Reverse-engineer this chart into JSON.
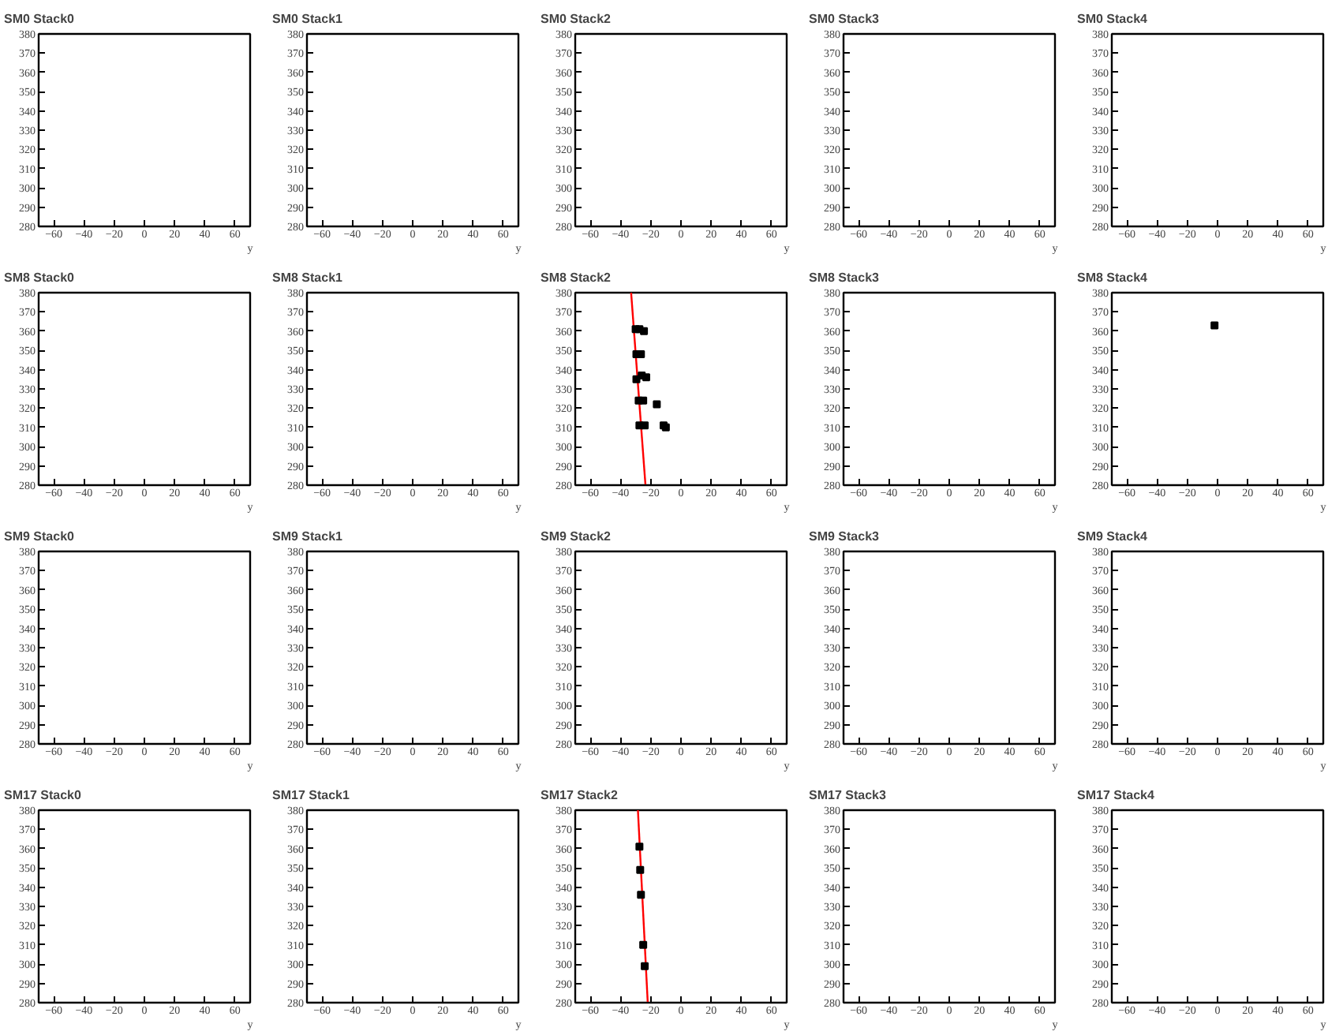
{
  "chart_data": [
    {
      "type": "scatter",
      "title": "SM0 Stack0",
      "xlabel": "y",
      "xlim": [
        -70,
        70
      ],
      "ylim": [
        280,
        380
      ],
      "xticks": [
        -60,
        -40,
        -20,
        0,
        20,
        40,
        60
      ],
      "yticks": [
        280,
        290,
        300,
        310,
        320,
        330,
        340,
        350,
        360,
        370,
        380
      ],
      "grid": false
    },
    {
      "type": "scatter",
      "title": "SM0 Stack1",
      "xlabel": "y",
      "xlim": [
        -70,
        70
      ],
      "ylim": [
        280,
        380
      ],
      "xticks": [
        -60,
        -40,
        -20,
        0,
        20,
        40,
        60
      ],
      "yticks": [
        280,
        290,
        300,
        310,
        320,
        330,
        340,
        350,
        360,
        370,
        380
      ],
      "grid": false
    },
    {
      "type": "scatter",
      "title": "SM0 Stack2",
      "xlabel": "y",
      "xlim": [
        -70,
        70
      ],
      "ylim": [
        280,
        380
      ],
      "xticks": [
        -60,
        -40,
        -20,
        0,
        20,
        40,
        60
      ],
      "yticks": [
        280,
        290,
        300,
        310,
        320,
        330,
        340,
        350,
        360,
        370,
        380
      ],
      "grid": false
    },
    {
      "type": "scatter",
      "title": "SM0 Stack3",
      "xlabel": "y",
      "xlim": [
        -70,
        70
      ],
      "ylim": [
        280,
        380
      ],
      "xticks": [
        -60,
        -40,
        -20,
        0,
        20,
        40,
        60
      ],
      "yticks": [
        280,
        290,
        300,
        310,
        320,
        330,
        340,
        350,
        360,
        370,
        380
      ],
      "grid": false
    },
    {
      "type": "scatter",
      "title": "SM0 Stack4",
      "xlabel": "y",
      "xlim": [
        -70,
        70
      ],
      "ylim": [
        280,
        380
      ],
      "xticks": [
        -60,
        -40,
        -20,
        0,
        20,
        40,
        60
      ],
      "yticks": [
        280,
        290,
        300,
        310,
        320,
        330,
        340,
        350,
        360,
        370,
        380
      ],
      "grid": false
    },
    {
      "type": "scatter",
      "title": "SM8 Stack0",
      "xlabel": "y",
      "xlim": [
        -70,
        70
      ],
      "ylim": [
        280,
        380
      ],
      "xticks": [
        -60,
        -40,
        -20,
        0,
        20,
        40,
        60
      ],
      "yticks": [
        280,
        290,
        300,
        310,
        320,
        330,
        340,
        350,
        360,
        370,
        380
      ],
      "grid": false
    },
    {
      "type": "scatter",
      "title": "SM8 Stack1",
      "xlabel": "y",
      "xlim": [
        -70,
        70
      ],
      "ylim": [
        280,
        380
      ],
      "xticks": [
        -60,
        -40,
        -20,
        0,
        20,
        40,
        60
      ],
      "yticks": [
        280,
        290,
        300,
        310,
        320,
        330,
        340,
        350,
        360,
        370,
        380
      ],
      "grid": false
    },
    {
      "type": "scatter",
      "title": "SM8 Stack2",
      "xlabel": "y",
      "xlim": [
        -70,
        70
      ],
      "ylim": [
        280,
        380
      ],
      "xticks": [
        -60,
        -40,
        -20,
        0,
        20,
        40,
        60
      ],
      "yticks": [
        280,
        290,
        300,
        310,
        320,
        330,
        340,
        350,
        360,
        370,
        380
      ],
      "grid": false,
      "series": [
        {
          "color": "#000000",
          "marker": "square",
          "x": [
            -30,
            -27.5,
            -24.5,
            -29.5,
            -26.5,
            -29.5,
            -26,
            -23,
            -28,
            -25,
            -16,
            -27.5,
            -24,
            -11.5,
            -10
          ],
          "values": [
            361,
            361,
            360,
            348,
            348,
            335,
            337,
            336,
            324,
            324,
            322,
            311,
            311,
            311,
            310
          ]
        },
        {
          "type": "line",
          "color": "#ff0000",
          "x": [
            -33,
            -23.5
          ],
          "values": [
            380,
            280
          ]
        }
      ]
    },
    {
      "type": "scatter",
      "title": "SM8 Stack3",
      "xlabel": "y",
      "xlim": [
        -70,
        70
      ],
      "ylim": [
        280,
        380
      ],
      "xticks": [
        -60,
        -40,
        -20,
        0,
        20,
        40,
        60
      ],
      "yticks": [
        280,
        290,
        300,
        310,
        320,
        330,
        340,
        350,
        360,
        370,
        380
      ],
      "grid": false
    },
    {
      "type": "scatter",
      "title": "SM8 Stack4",
      "xlabel": "y",
      "xlim": [
        -70,
        70
      ],
      "ylim": [
        280,
        380
      ],
      "xticks": [
        -60,
        -40,
        -20,
        0,
        20,
        40,
        60
      ],
      "yticks": [
        280,
        290,
        300,
        310,
        320,
        330,
        340,
        350,
        360,
        370,
        380
      ],
      "grid": false,
      "series": [
        {
          "color": "#000000",
          "marker": "square",
          "x": [
            -2
          ],
          "values": [
            363
          ]
        }
      ]
    },
    {
      "type": "scatter",
      "title": "SM9 Stack0",
      "xlabel": "y",
      "xlim": [
        -70,
        70
      ],
      "ylim": [
        280,
        380
      ],
      "xticks": [
        -60,
        -40,
        -20,
        0,
        20,
        40,
        60
      ],
      "yticks": [
        280,
        290,
        300,
        310,
        320,
        330,
        340,
        350,
        360,
        370,
        380
      ],
      "grid": false
    },
    {
      "type": "scatter",
      "title": "SM9 Stack1",
      "xlabel": "y",
      "xlim": [
        -70,
        70
      ],
      "ylim": [
        280,
        380
      ],
      "xticks": [
        -60,
        -40,
        -20,
        0,
        20,
        40,
        60
      ],
      "yticks": [
        280,
        290,
        300,
        310,
        320,
        330,
        340,
        350,
        360,
        370,
        380
      ],
      "grid": false
    },
    {
      "type": "scatter",
      "title": "SM9 Stack2",
      "xlabel": "y",
      "xlim": [
        -70,
        70
      ],
      "ylim": [
        280,
        380
      ],
      "xticks": [
        -60,
        -40,
        -20,
        0,
        20,
        40,
        60
      ],
      "yticks": [
        280,
        290,
        300,
        310,
        320,
        330,
        340,
        350,
        360,
        370,
        380
      ],
      "grid": false
    },
    {
      "type": "scatter",
      "title": "SM9 Stack3",
      "xlabel": "y",
      "xlim": [
        -70,
        70
      ],
      "ylim": [
        280,
        380
      ],
      "xticks": [
        -60,
        -40,
        -20,
        0,
        20,
        40,
        60
      ],
      "yticks": [
        280,
        290,
        300,
        310,
        320,
        330,
        340,
        350,
        360,
        370,
        380
      ],
      "grid": false
    },
    {
      "type": "scatter",
      "title": "SM9 Stack4",
      "xlabel": "y",
      "xlim": [
        -70,
        70
      ],
      "ylim": [
        280,
        380
      ],
      "xticks": [
        -60,
        -40,
        -20,
        0,
        20,
        40,
        60
      ],
      "yticks": [
        280,
        290,
        300,
        310,
        320,
        330,
        340,
        350,
        360,
        370,
        380
      ],
      "grid": false
    },
    {
      "type": "scatter",
      "title": "SM17 Stack0",
      "xlabel": "y",
      "xlim": [
        -70,
        70
      ],
      "ylim": [
        280,
        380
      ],
      "xticks": [
        -60,
        -40,
        -20,
        0,
        20,
        40,
        60
      ],
      "yticks": [
        280,
        290,
        300,
        310,
        320,
        330,
        340,
        350,
        360,
        370,
        380
      ],
      "grid": false
    },
    {
      "type": "scatter",
      "title": "SM17 Stack1",
      "xlabel": "y",
      "xlim": [
        -70,
        70
      ],
      "ylim": [
        280,
        380
      ],
      "xticks": [
        -60,
        -40,
        -20,
        0,
        20,
        40,
        60
      ],
      "yticks": [
        280,
        290,
        300,
        310,
        320,
        330,
        340,
        350,
        360,
        370,
        380
      ],
      "grid": false
    },
    {
      "type": "scatter",
      "title": "SM17 Stack2",
      "xlabel": "y",
      "xlim": [
        -70,
        70
      ],
      "ylim": [
        280,
        380
      ],
      "xticks": [
        -60,
        -40,
        -20,
        0,
        20,
        40,
        60
      ],
      "yticks": [
        280,
        290,
        300,
        310,
        320,
        330,
        340,
        350,
        360,
        370,
        380
      ],
      "grid": false,
      "series": [
        {
          "color": "#000000",
          "marker": "square",
          "x": [
            -27.5,
            -27,
            -26.5,
            -25,
            -24
          ],
          "values": [
            361,
            349,
            336,
            310,
            299
          ]
        },
        {
          "type": "line",
          "color": "#ff0000",
          "x": [
            -28.5,
            -22
          ],
          "values": [
            380,
            280
          ]
        }
      ]
    },
    {
      "type": "scatter",
      "title": "SM17 Stack3",
      "xlabel": "y",
      "xlim": [
        -70,
        70
      ],
      "ylim": [
        280,
        380
      ],
      "xticks": [
        -60,
        -40,
        -20,
        0,
        20,
        40,
        60
      ],
      "yticks": [
        280,
        290,
        300,
        310,
        320,
        330,
        340,
        350,
        360,
        370,
        380
      ],
      "grid": false
    },
    {
      "type": "scatter",
      "title": "SM17 Stack4",
      "xlabel": "y",
      "xlim": [
        -70,
        70
      ],
      "ylim": [
        280,
        380
      ],
      "xticks": [
        -60,
        -40,
        -20,
        0,
        20,
        40,
        60
      ],
      "yticks": [
        280,
        290,
        300,
        310,
        320,
        330,
        340,
        350,
        360,
        370,
        380
      ],
      "grid": false
    }
  ]
}
